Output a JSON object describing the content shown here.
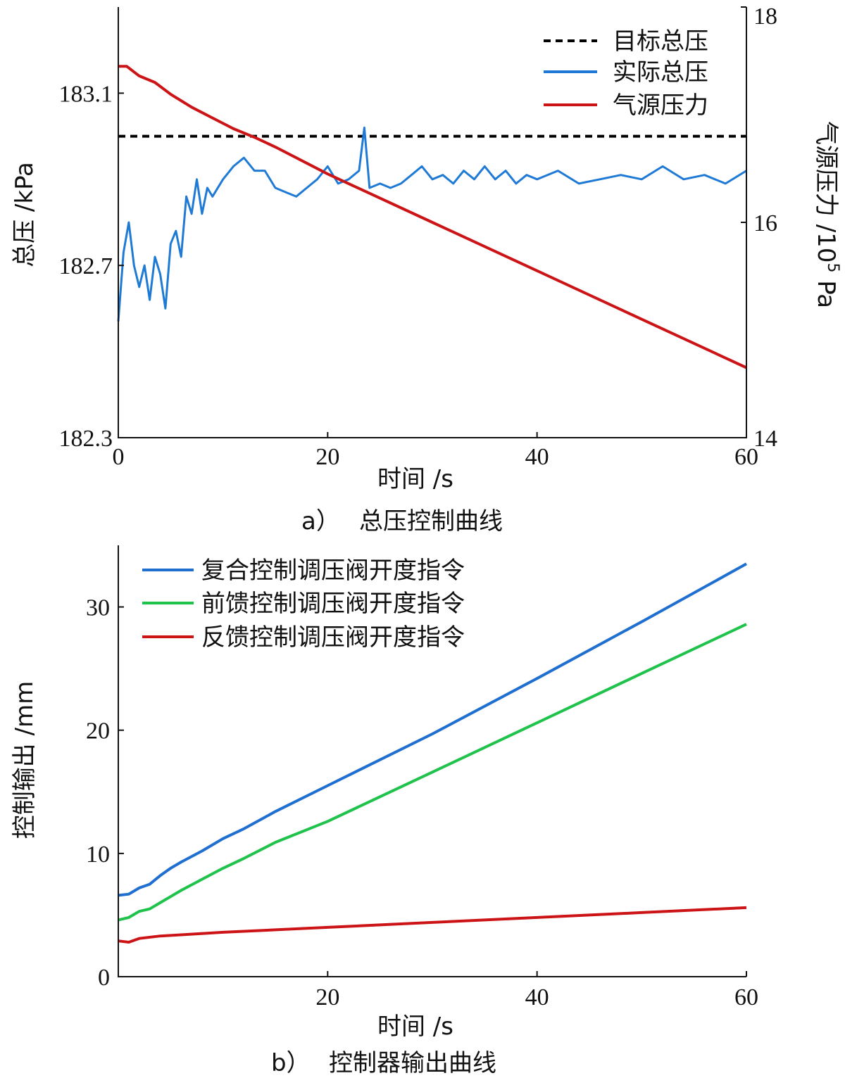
{
  "colors": {
    "target": "#000000",
    "actual": "#1f7ad6",
    "source": "#cc1417",
    "composite": "#1f6fd1",
    "feedforward": "#1fc24a",
    "feedback": "#cc1417"
  },
  "chart_data": [
    {
      "type": "line",
      "caption_label": "a）",
      "caption_text": "总压控制曲线",
      "xlabel": "时间 /s",
      "ylabel": "总压 /kPa",
      "y2label_main": "气源压力 /10",
      "y2label_exp": "5",
      "y2label_unit": " Pa",
      "xlim": [
        0,
        60
      ],
      "ylim": [
        182.3,
        183.3
      ],
      "y2lim": [
        14,
        18
      ],
      "xticks": [
        0,
        20,
        40,
        60
      ],
      "yticks": [
        182.3,
        182.7,
        183.1
      ],
      "y2ticks": [
        14,
        16,
        18
      ],
      "ytick_labels": [
        "182.3",
        "182.7",
        "183.1"
      ],
      "legend_position": "top-right",
      "series": [
        {
          "name": "目标总压",
          "axis": "left",
          "style": "dashed",
          "x": [
            0,
            60
          ],
          "y": [
            183.0,
            183.0
          ]
        },
        {
          "name": "实际总压",
          "axis": "left",
          "style": "solid",
          "x": [
            0,
            0.5,
            1,
            1.5,
            2,
            2.5,
            3,
            3.5,
            4,
            4.5,
            5,
            5.5,
            6,
            6.5,
            7,
            7.5,
            8,
            8.5,
            9,
            10,
            11,
            12,
            13,
            14,
            15,
            16,
            17,
            18,
            19,
            20,
            21,
            22,
            23,
            23.5,
            24,
            25,
            26,
            27,
            28,
            29,
            30,
            31,
            32,
            33,
            34,
            35,
            36,
            37,
            38,
            39,
            40,
            42,
            44,
            46,
            48,
            50,
            52,
            54,
            56,
            58,
            60
          ],
          "y": [
            182.57,
            182.73,
            182.8,
            182.7,
            182.65,
            182.7,
            182.62,
            182.72,
            182.68,
            182.6,
            182.75,
            182.78,
            182.72,
            182.86,
            182.82,
            182.9,
            182.82,
            182.88,
            182.86,
            182.9,
            182.93,
            182.95,
            182.92,
            182.92,
            182.88,
            182.87,
            182.86,
            182.88,
            182.9,
            182.93,
            182.89,
            182.9,
            182.92,
            183.02,
            182.88,
            182.89,
            182.88,
            182.89,
            182.91,
            182.93,
            182.9,
            182.91,
            182.89,
            182.92,
            182.9,
            182.93,
            182.9,
            182.92,
            182.89,
            182.91,
            182.9,
            182.92,
            182.89,
            182.9,
            182.91,
            182.9,
            182.93,
            182.9,
            182.91,
            182.89,
            182.92
          ]
        },
        {
          "name": "气源压力",
          "axis": "right",
          "style": "solid",
          "x": [
            0,
            0.8,
            2,
            3.5,
            5,
            7,
            9,
            11,
            13,
            15,
            20,
            30,
            40,
            50,
            60
          ],
          "y": [
            17.45,
            17.45,
            17.36,
            17.3,
            17.19,
            17.07,
            16.97,
            16.87,
            16.79,
            16.7,
            16.45,
            16.0,
            15.55,
            15.1,
            14.65
          ]
        }
      ]
    },
    {
      "type": "line",
      "caption_label": "b）",
      "caption_text": "控制器输出曲线",
      "xlabel": "时间 /s",
      "ylabel": "控制输出 /mm",
      "xlim": [
        0,
        60
      ],
      "ylim": [
        0,
        35
      ],
      "xticks": [
        20,
        40,
        60
      ],
      "yticks": [
        0,
        10,
        20,
        30
      ],
      "legend_position": "top-left",
      "series": [
        {
          "name": "复合控制调压阀开度指令",
          "x": [
            0,
            1,
            2,
            3,
            4,
            5,
            6,
            8,
            10,
            12,
            15,
            20,
            30,
            40,
            50,
            60
          ],
          "y": [
            6.6,
            6.7,
            7.2,
            7.5,
            8.2,
            8.8,
            9.3,
            10.2,
            11.2,
            12.0,
            13.4,
            15.5,
            19.7,
            24.2,
            28.8,
            33.5
          ]
        },
        {
          "name": "前馈控制调压阀开度指令",
          "x": [
            0,
            1,
            2,
            3,
            4,
            5,
            6,
            8,
            10,
            12,
            15,
            20,
            30,
            40,
            50,
            60
          ],
          "y": [
            4.6,
            4.8,
            5.3,
            5.5,
            6.0,
            6.5,
            7.0,
            7.9,
            8.8,
            9.6,
            10.9,
            12.6,
            16.6,
            20.6,
            24.6,
            28.6
          ]
        },
        {
          "name": "反馈控制调压阀开度指令",
          "x": [
            0,
            1,
            2,
            4,
            6,
            10,
            15,
            20,
            30,
            40,
            50,
            60
          ],
          "y": [
            2.9,
            2.8,
            3.1,
            3.3,
            3.4,
            3.6,
            3.8,
            4.0,
            4.4,
            4.8,
            5.2,
            5.6
          ]
        }
      ]
    }
  ]
}
